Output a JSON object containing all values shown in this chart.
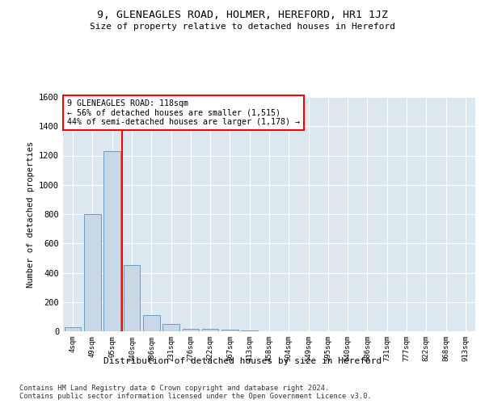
{
  "title1": "9, GLENEAGLES ROAD, HOLMER, HEREFORD, HR1 1JZ",
  "title2": "Size of property relative to detached houses in Hereford",
  "xlabel": "Distribution of detached houses by size in Hereford",
  "ylabel": "Number of detached properties",
  "categories": [
    "4sqm",
    "49sqm",
    "95sqm",
    "140sqm",
    "186sqm",
    "231sqm",
    "276sqm",
    "322sqm",
    "367sqm",
    "413sqm",
    "458sqm",
    "504sqm",
    "549sqm",
    "595sqm",
    "640sqm",
    "686sqm",
    "731sqm",
    "777sqm",
    "822sqm",
    "868sqm",
    "913sqm"
  ],
  "values": [
    30,
    800,
    1230,
    450,
    110,
    50,
    15,
    15,
    10,
    5,
    0,
    0,
    0,
    0,
    0,
    0,
    0,
    0,
    0,
    0,
    0
  ],
  "bar_color": "#c8d8e8",
  "bar_edge_color": "#6a9cbf",
  "annotation_text": "9 GLENEAGLES ROAD: 118sqm\n← 56% of detached houses are smaller (1,515)\n44% of semi-detached houses are larger (1,178) →",
  "vline_color": "red",
  "vline_x": 2.5,
  "ylim": [
    0,
    1600
  ],
  "yticks": [
    0,
    200,
    400,
    600,
    800,
    1000,
    1200,
    1400,
    1600
  ],
  "background_color": "#dce8f0",
  "grid_color": "white",
  "footer": "Contains HM Land Registry data © Crown copyright and database right 2024.\nContains public sector information licensed under the Open Government Licence v3.0."
}
